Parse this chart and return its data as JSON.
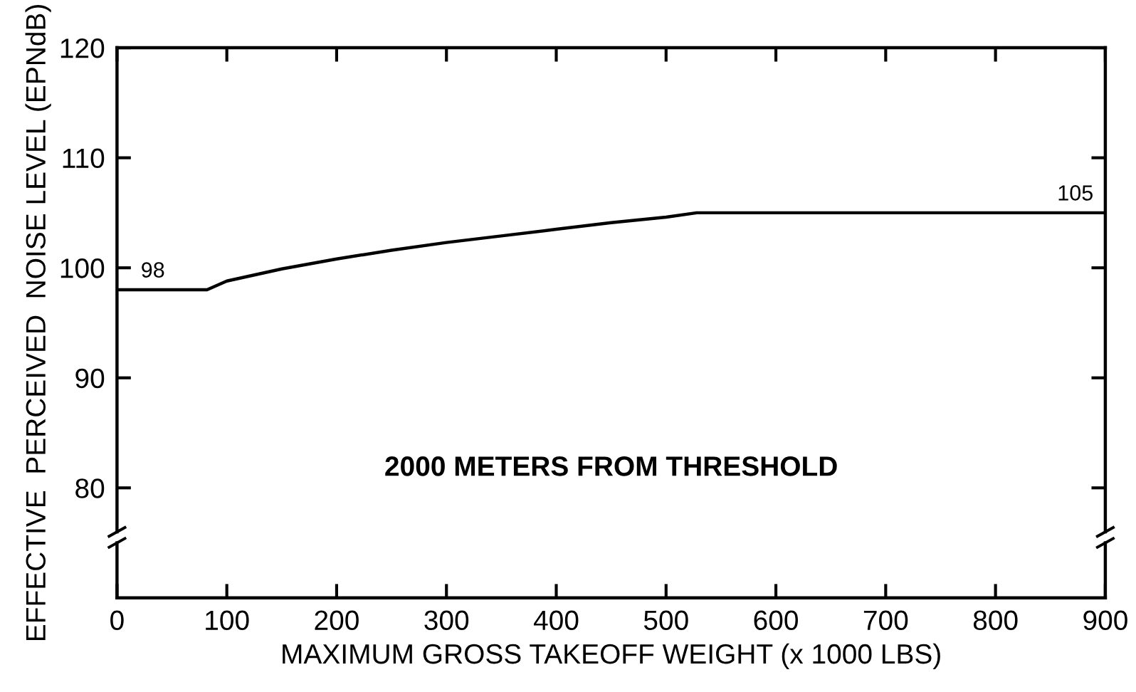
{
  "chart_data": {
    "type": "line",
    "xlabel": "MAXIMUM GROSS TAKEOFF WEIGHT (x 1000 LBS)",
    "ylabel": "EFFECTIVE  PERCEIVED  NOISE LEVEL (EPNdB)",
    "x": [
      0,
      82,
      100,
      150,
      200,
      250,
      300,
      350,
      400,
      450,
      500,
      528,
      900
    ],
    "series": [
      {
        "color": "#000000",
        "values": [
          98,
          98,
          98.8,
          99.9,
          100.8,
          101.6,
          102.3,
          102.9,
          103.5,
          104.1,
          104.6,
          105,
          105
        ]
      }
    ],
    "xlim": [
      0,
      900
    ],
    "xticks": [
      0,
      100,
      200,
      300,
      400,
      500,
      600,
      700,
      800,
      900
    ],
    "ylim": [
      70,
      120
    ],
    "yticks": [
      80,
      90,
      100,
      110,
      120
    ],
    "annotations": [
      {
        "text": "98",
        "x": 0,
        "y": 98
      },
      {
        "text": "105",
        "x": 900,
        "y": 105
      },
      "2000 METERS FROM THRESHOLD"
    ],
    "legend": false,
    "line_style": "solid"
  }
}
